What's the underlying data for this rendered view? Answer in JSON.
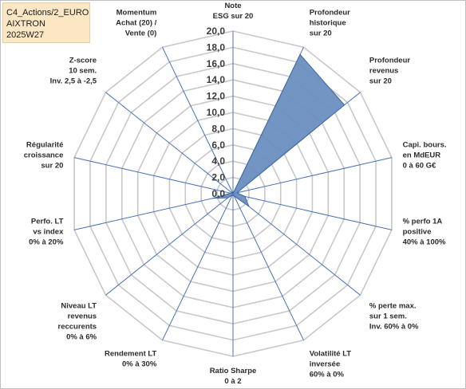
{
  "header": {
    "line1": "C4_Actions/2_EURO",
    "line2": "AIXTRON",
    "line3": "2025W27"
  },
  "chart_data": {
    "type": "radar",
    "categories": [
      [
        "Note",
        "ESG sur 20"
      ],
      [
        "Profondeur",
        "historique",
        "sur 20"
      ],
      [
        "Profondeur",
        "revenus",
        "sur 20"
      ],
      [
        "Capi. bours.",
        "en MdEUR",
        "0 à 60 G€"
      ],
      [
        "% perfo 1A",
        "positive",
        "40% à 100%"
      ],
      [
        "% perte max.",
        "sur 1 sem.",
        "Inv. 60% à 0%"
      ],
      [
        "Volatilité LT",
        "inversée",
        "60% à 0%"
      ],
      [
        "Ratio Sharpe",
        "0 à 2"
      ],
      [
        "Rendement LT",
        "0% à 30%"
      ],
      [
        "Niveau LT",
        "revenus",
        "reccurents",
        "0% à 6%"
      ],
      [
        "Perfo. LT",
        "vs index",
        "0% à 20%"
      ],
      [
        "Régularité",
        "croissance",
        "sur 20"
      ],
      [
        "Z-score",
        "10 sem.",
        "Inv. 2,5 à -2,5"
      ],
      [
        "Momentum",
        "Achat (20) /",
        "Vente (0)"
      ]
    ],
    "values": [
      0,
      19,
      17.5,
      0.5,
      1.5,
      2.5,
      0.3,
      0.2,
      0.2,
      0.8,
      2.5,
      0.3,
      0.2,
      0.2
    ],
    "rlim": [
      0,
      20
    ],
    "ticks": [
      "0,0",
      "2,0",
      "4,0",
      "6,0",
      "8,0",
      "10,0",
      "12,0",
      "14,0",
      "16,0",
      "18,0",
      "20,0"
    ],
    "grid": true,
    "colors": {
      "fill": "#6b8fc0",
      "stroke": "#3f64a2",
      "grid": "#c8c8c8",
      "spoke": "#4a72b8"
    }
  }
}
